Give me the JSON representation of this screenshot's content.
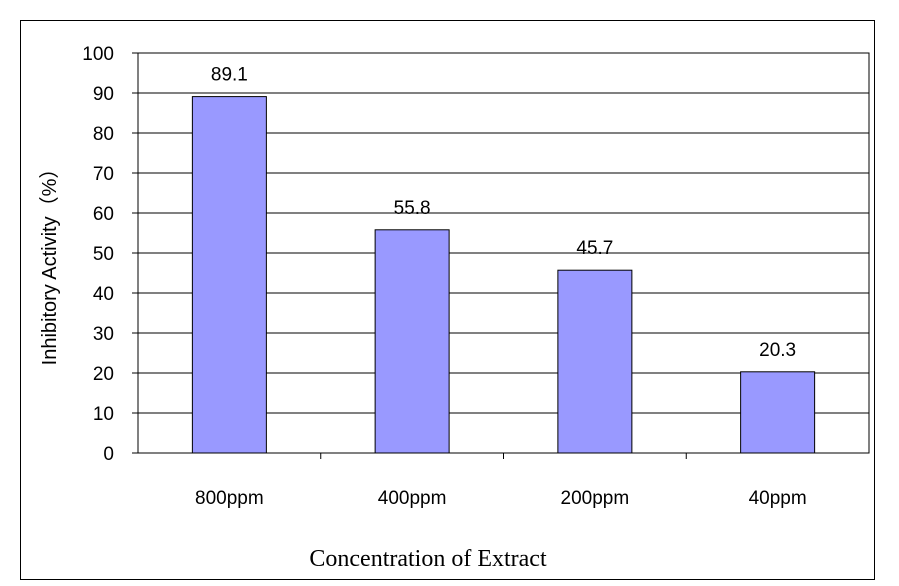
{
  "chart_data": {
    "type": "bar",
    "title": "",
    "categories": [
      "800ppm",
      "400ppm",
      "200ppm",
      "40ppm"
    ],
    "values": [
      89.1,
      55.8,
      45.7,
      20.3
    ],
    "data_labels": [
      "89.1",
      "55.8",
      "45.7",
      "20.3"
    ],
    "xlabel": "Concentration of Extract",
    "ylabel": "Inhibitory Activity（%）",
    "ylim": [
      0,
      100
    ],
    "yticks": [
      "0",
      "10",
      "20",
      "30",
      "40",
      "50",
      "60",
      "70",
      "80",
      "90",
      "100"
    ],
    "grid": true,
    "legend": "none",
    "colors": {
      "bar": "#9999ff",
      "bar_border": "#000000",
      "grid": "#000000"
    }
  }
}
